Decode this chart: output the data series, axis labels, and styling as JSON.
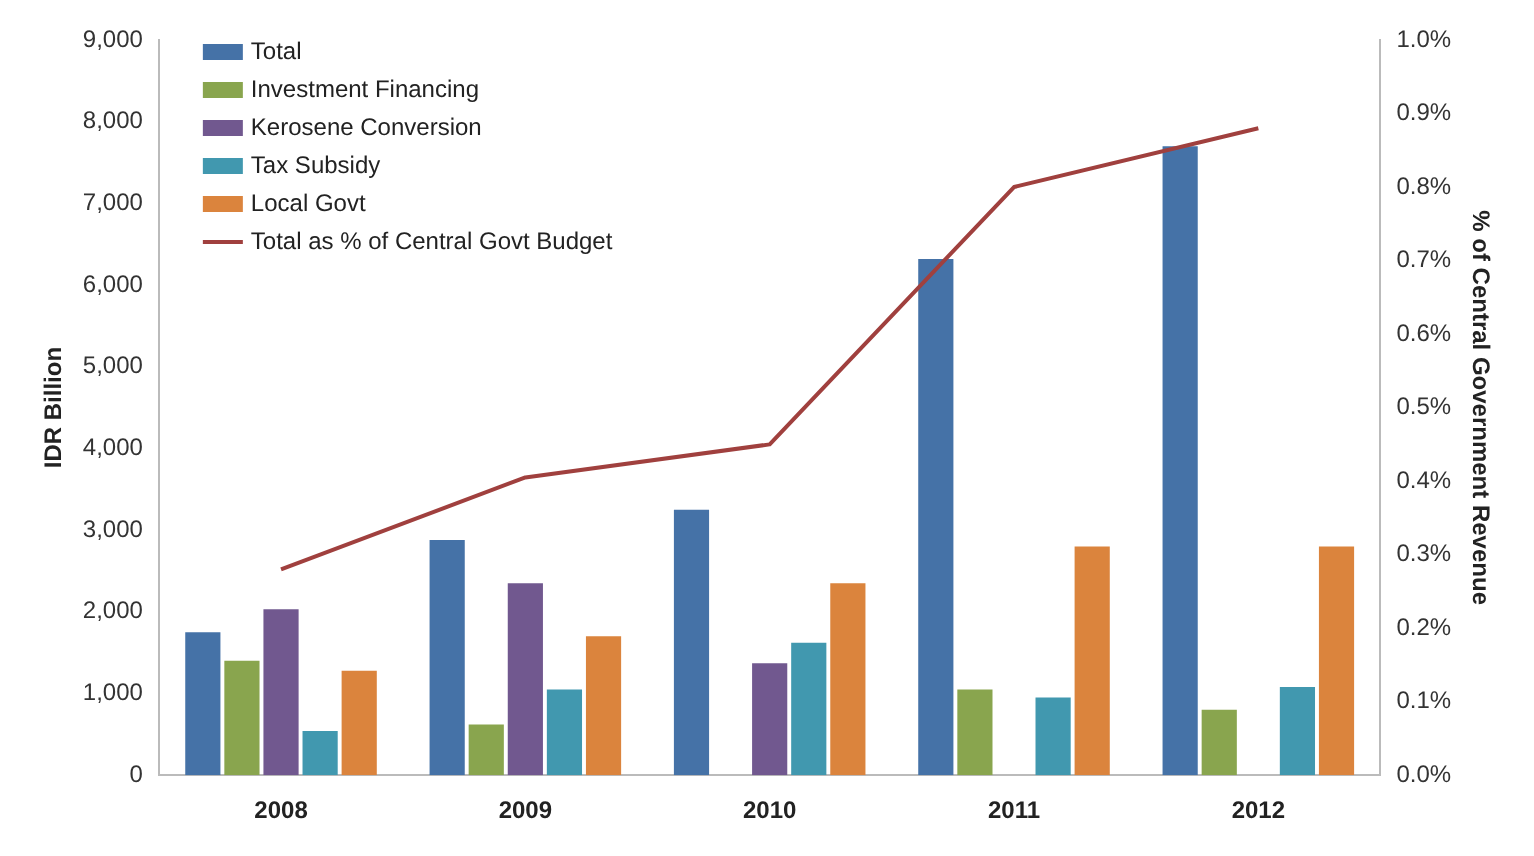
{
  "chart_data": {
    "type": "bar",
    "categories": [
      "2008",
      "2009",
      "2010",
      "2011",
      "2012"
    ],
    "ylabel": "IDR Billion",
    "y2label": "% of Central Government Revenue",
    "series": [
      {
        "name": "Total",
        "color": "#4572a7",
        "values": [
          1750,
          2880,
          3250,
          6320,
          7700
        ]
      },
      {
        "name": "Investment Financing",
        "color": "#89a54e",
        "values": [
          1400,
          620,
          null,
          1050,
          800
        ]
      },
      {
        "name": "Kerosene Conversion",
        "color": "#71588f",
        "values": [
          2030,
          2350,
          1370,
          null,
          null
        ]
      },
      {
        "name": "Tax Subsidy",
        "color": "#4198af",
        "values": [
          540,
          1050,
          1620,
          950,
          1080
        ]
      },
      {
        "name": "Local Govt",
        "color": "#db843d",
        "values": [
          1280,
          1700,
          2350,
          2800,
          2800
        ]
      },
      {
        "name": "Total as % of Central Govt Budget",
        "type": "line",
        "axis": "y2",
        "color": "#a0403e",
        "values": [
          0.28,
          0.405,
          0.45,
          0.8,
          0.88
        ]
      }
    ],
    "ylim": [
      0,
      9000
    ],
    "yticks": [
      0,
      {
        "value": 1000,
        "label": "1,000"
      },
      {
        "value": 2000,
        "label": "2,000"
      },
      {
        "value": 3000,
        "label": "3,000"
      },
      {
        "value": 4000,
        "label": "4,000"
      },
      {
        "value": 5000,
        "label": "5,000"
      },
      {
        "value": 6000,
        "label": "6,000"
      },
      {
        "value": 7000,
        "label": "7,000"
      },
      {
        "value": 8000,
        "label": "8,000"
      },
      {
        "value": 9000,
        "label": "9,000"
      }
    ],
    "y2lim": [
      0,
      1
    ],
    "y2ticks": [
      {
        "value": 0,
        "label": "0.0%"
      },
      {
        "value": 0.1,
        "label": "0.1%"
      },
      {
        "value": 0.2,
        "label": "0.2%"
      },
      {
        "value": 0.3,
        "label": "0.3%"
      },
      {
        "value": 0.4,
        "label": "0.4%"
      },
      {
        "value": 0.5,
        "label": "0.5%"
      },
      {
        "value": 0.6,
        "label": "0.6%"
      },
      {
        "value": 0.7,
        "label": "0.7%"
      },
      {
        "value": 0.8,
        "label": "0.8%"
      },
      {
        "value": 0.9,
        "label": "0.9%"
      },
      {
        "value": 1,
        "label": "1.0%"
      }
    ],
    "grid": false,
    "legend": "top left",
    "marker": "none"
  }
}
